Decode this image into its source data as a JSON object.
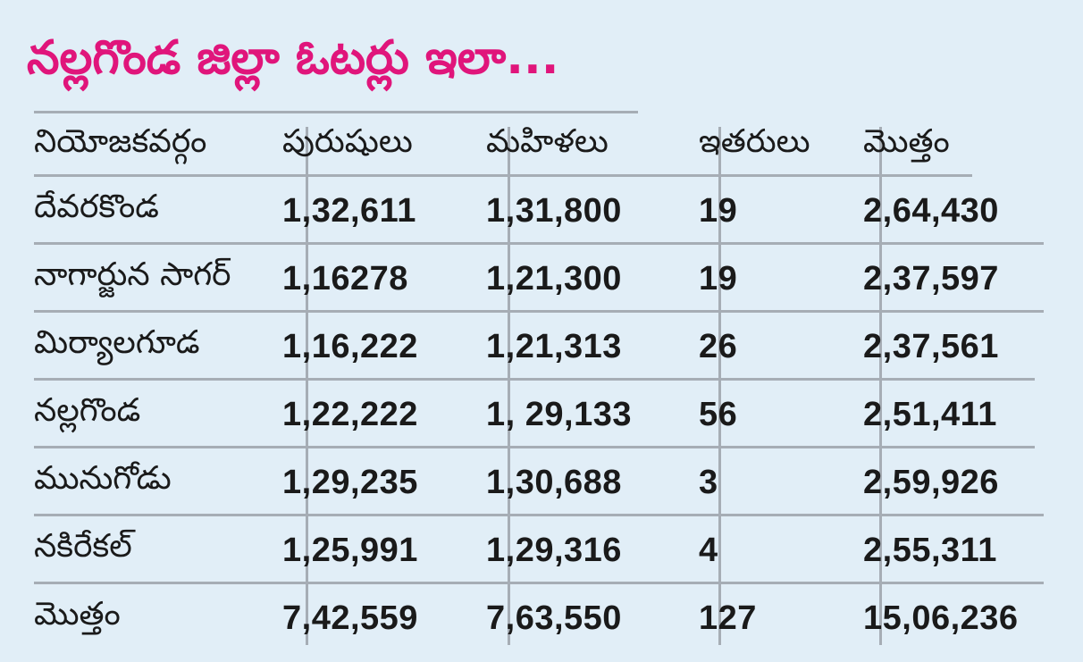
{
  "title": "నల్లగొండ జిల్లా ఓటర్లు ఇలా...",
  "table": {
    "headers": [
      "నియోజకవర్గం",
      "పురుషులు",
      "మహిళలు",
      "ఇతరులు",
      "మొత్తం"
    ],
    "rows": [
      [
        "దేవరకొండ",
        "1,32,611",
        "1,31,800",
        "19",
        "2,64,430"
      ],
      [
        "నాగార్జున సాగర్",
        "1,16278",
        "1,21,300",
        "19",
        "2,37,597"
      ],
      [
        "మిర్యాలగూడ",
        "1,16,222",
        "1,21,313",
        "26",
        "2,37,561"
      ],
      [
        "నల్లగొండ",
        "1,22,222",
        " 1, 29,133",
        "56",
        "2,51,411"
      ],
      [
        "మునుగోడు",
        "1,29,235",
        " 1,30,688",
        "3",
        "2,59,926"
      ],
      [
        "నకిరేకల్",
        "1,25,991",
        "1,29,316",
        "4",
        "2,55,311"
      ],
      [
        "మొత్తం",
        "7,42,559",
        "7,63,550",
        "127",
        "15,06,236"
      ]
    ]
  },
  "colors": {
    "title": "#e0157b",
    "background": "#e1eef7",
    "rule": "#a6adb5",
    "text": "#1a1a1a"
  }
}
